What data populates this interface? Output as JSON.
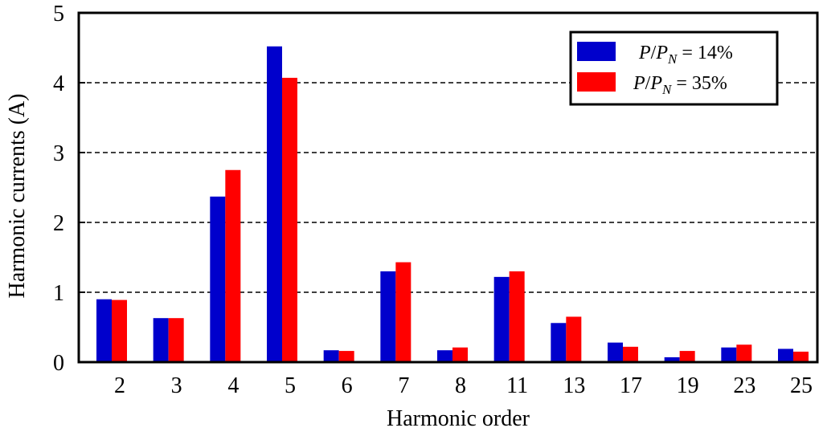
{
  "chart_data": {
    "type": "bar",
    "xlabel": "Harmonic order",
    "ylabel": "Harmonic currents (A)",
    "ylim": [
      0,
      5
    ],
    "yticks": [
      "0",
      "1",
      "2",
      "3",
      "4",
      "5"
    ],
    "categories": [
      "2",
      "3",
      "4",
      "5",
      "6",
      "7",
      "8",
      "11",
      "13",
      "17",
      "19",
      "23",
      "25"
    ],
    "grid": "horizontal dashed",
    "legend_position": "top-right",
    "series": [
      {
        "name": "P/P_N = 14%",
        "name_parts": {
          "var1": "P",
          "slash": "/",
          "var2": "P",
          "sub": "N",
          "eq": " = 14%"
        },
        "color": "#0000cc",
        "values": [
          0.9,
          0.63,
          2.37,
          4.52,
          0.17,
          1.3,
          0.17,
          1.22,
          0.56,
          0.28,
          0.07,
          0.21,
          0.19
        ]
      },
      {
        "name": "P/P_N = 35%",
        "name_parts": {
          "var1": "P",
          "slash": "/",
          "var2": "P",
          "sub": "N",
          "eq": " = 35%"
        },
        "color": "#ff0000",
        "values": [
          0.89,
          0.63,
          2.75,
          4.07,
          0.16,
          1.43,
          0.21,
          1.3,
          0.65,
          0.22,
          0.16,
          0.25,
          0.15
        ]
      }
    ]
  }
}
